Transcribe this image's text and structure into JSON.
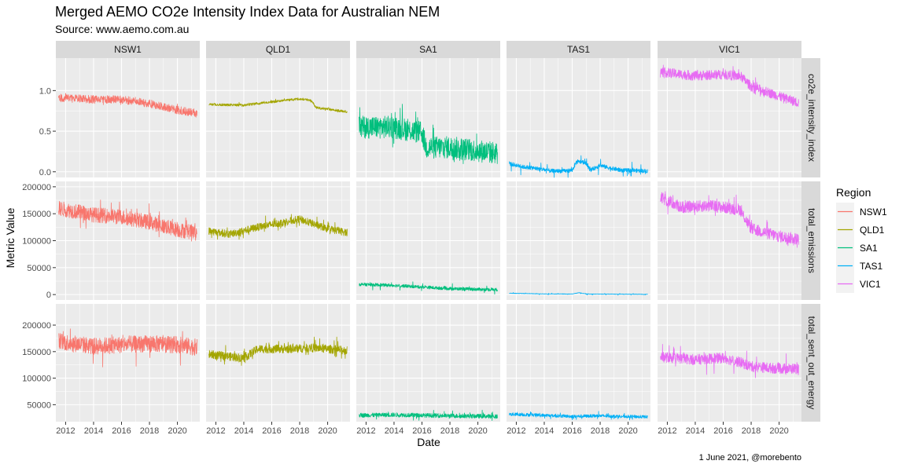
{
  "chart_data": {
    "type": "line",
    "title": "Merged AEMO CO2e Intensity Index Data for Australian NEM",
    "subtitle": "Source: www.aemo.com.au",
    "caption": "1 June 2021, @morebento",
    "xlabel": "Date",
    "ylabel": "Metric Value",
    "x_ticks": [
      "2012",
      "2014",
      "2016",
      "2018",
      "2020"
    ],
    "xlim": [
      2011.3,
      2021.6
    ],
    "grid": true,
    "legend": {
      "title": "Region",
      "position": "right"
    },
    "regions": [
      "NSW1",
      "QLD1",
      "SA1",
      "TAS1",
      "VIC1"
    ],
    "colors": {
      "NSW1": "#F8766D",
      "QLD1": "#A3A500",
      "SA1": "#00BF7D",
      "TAS1": "#00B0F6",
      "VIC1": "#E76BF3"
    },
    "facet_rows": [
      {
        "metric": "co2e_intensity_index",
        "ylim": [
          -0.07,
          1.4
        ],
        "y_ticks": [
          0.0,
          0.5,
          1.0
        ],
        "y_tick_labels": [
          "0.0",
          "0.5",
          "1.0"
        ],
        "series": [
          {
            "region": "NSW1",
            "start": 2011.5,
            "end": 2021.4,
            "trend": [
              [
                2011.5,
                0.91
              ],
              [
                2014,
                0.89
              ],
              [
                2016,
                0.89
              ],
              [
                2018,
                0.84
              ],
              [
                2020,
                0.76
              ],
              [
                2021.4,
                0.72
              ]
            ],
            "noise": 0.05,
            "spike": 0.06
          },
          {
            "region": "QLD1",
            "start": 2011.5,
            "end": 2021.4,
            "trend": [
              [
                2011.5,
                0.83
              ],
              [
                2014,
                0.82
              ],
              [
                2016,
                0.86
              ],
              [
                2018,
                0.9
              ],
              [
                2018.8,
                0.88
              ],
              [
                2019.2,
                0.79
              ],
              [
                2021.4,
                0.74
              ]
            ],
            "noise": 0.015,
            "spike": 0.02
          },
          {
            "region": "SA1",
            "start": 2011.5,
            "end": 2021.4,
            "trend": [
              [
                2011.5,
                0.55
              ],
              [
                2014,
                0.55
              ],
              [
                2016,
                0.48
              ],
              [
                2016.3,
                0.3
              ],
              [
                2018,
                0.3
              ],
              [
                2021.4,
                0.23
              ]
            ],
            "noise": 0.14,
            "spike": 0.2
          },
          {
            "region": "TAS1",
            "start": 2011.5,
            "end": 2021.4,
            "trend": [
              [
                2011.5,
                0.1
              ],
              [
                2012.5,
                0.06
              ],
              [
                2013.5,
                0.04
              ],
              [
                2014.5,
                0.01
              ],
              [
                2015.5,
                0.01
              ],
              [
                2016.0,
                0.02
              ],
              [
                2016.3,
                0.12
              ],
              [
                2016.9,
                0.12
              ],
              [
                2017.3,
                0.02
              ],
              [
                2018,
                0.08
              ],
              [
                2018.6,
                0.05
              ],
              [
                2019.5,
                0.02
              ],
              [
                2021.4,
                0.01
              ]
            ],
            "noise": 0.025,
            "spike": 0.1
          },
          {
            "region": "VIC1",
            "start": 2011.5,
            "end": 2021.4,
            "trend": [
              [
                2011.5,
                1.23
              ],
              [
                2014,
                1.18
              ],
              [
                2016,
                1.2
              ],
              [
                2017.3,
                1.17
              ],
              [
                2018,
                1.05
              ],
              [
                2020,
                0.93
              ],
              [
                2021.4,
                0.85
              ]
            ],
            "noise": 0.06,
            "spike": 0.08
          }
        ]
      },
      {
        "metric": "total_emissions",
        "ylim": [
          -10000,
          210000
        ],
        "y_ticks": [
          0,
          50000,
          100000,
          150000,
          200000
        ],
        "y_tick_labels": [
          "0",
          "50000",
          "100000",
          "150000",
          "200000"
        ],
        "series": [
          {
            "region": "NSW1",
            "start": 2011.5,
            "end": 2021.4,
            "trend": [
              [
                2011.5,
                160000
              ],
              [
                2014,
                148000
              ],
              [
                2016,
                144000
              ],
              [
                2018,
                134000
              ],
              [
                2020,
                120000
              ],
              [
                2021.4,
                115000
              ]
            ],
            "noise": 14000,
            "spike": 25000
          },
          {
            "region": "QLD1",
            "start": 2011.5,
            "end": 2021.4,
            "trend": [
              [
                2011.5,
                118000
              ],
              [
                2013,
                112000
              ],
              [
                2015,
                125000
              ],
              [
                2017,
                135000
              ],
              [
                2018,
                140000
              ],
              [
                2020,
                122000
              ],
              [
                2021.4,
                115000
              ]
            ],
            "noise": 7000,
            "spike": 12000
          },
          {
            "region": "SA1",
            "start": 2011.5,
            "end": 2021.4,
            "trend": [
              [
                2011.5,
                19000
              ],
              [
                2014,
                17000
              ],
              [
                2016,
                14000
              ],
              [
                2018,
                11000
              ],
              [
                2021.4,
                9000
              ]
            ],
            "noise": 3000,
            "spike": 7000
          },
          {
            "region": "TAS1",
            "start": 2011.5,
            "end": 2021.4,
            "trend": [
              [
                2011.5,
                2500
              ],
              [
                2014,
                1200
              ],
              [
                2016,
                1000
              ],
              [
                2016.5,
                3500
              ],
              [
                2017,
                1000
              ],
              [
                2021.4,
                500
              ]
            ],
            "noise": 400,
            "spike": 2000
          },
          {
            "region": "VIC1",
            "start": 2011.5,
            "end": 2021.4,
            "trend": [
              [
                2011.5,
                180000
              ],
              [
                2013,
                162000
              ],
              [
                2015,
                165000
              ],
              [
                2017.2,
                158000
              ],
              [
                2018,
                122000
              ],
              [
                2020,
                108000
              ],
              [
                2021.4,
                103000
              ]
            ],
            "noise": 11000,
            "spike": 18000
          }
        ]
      },
      {
        "metric": "total_sent_out_energy",
        "ylim": [
          18000,
          240000
        ],
        "y_ticks": [
          50000,
          100000,
          150000,
          200000
        ],
        "y_tick_labels": [
          "50000",
          "100000",
          "150000",
          "200000"
        ],
        "series": [
          {
            "region": "NSW1",
            "start": 2011.5,
            "end": 2021.4,
            "trend": [
              [
                2011.5,
                170000
              ],
              [
                2014,
                160000
              ],
              [
                2016,
                163000
              ],
              [
                2018,
                165000
              ],
              [
                2020,
                163000
              ],
              [
                2021.4,
                158000
              ]
            ],
            "noise": 16000,
            "spike": 30000
          },
          {
            "region": "QLD1",
            "start": 2011.5,
            "end": 2021.4,
            "trend": [
              [
                2011.5,
                145000
              ],
              [
                2014,
                138000
              ],
              [
                2015,
                155000
              ],
              [
                2017,
                155000
              ],
              [
                2019,
                157000
              ],
              [
                2021.4,
                152000
              ]
            ],
            "noise": 8000,
            "spike": 18000
          },
          {
            "region": "SA1",
            "start": 2011.5,
            "end": 2021.4,
            "trend": [
              [
                2011.5,
                30000
              ],
              [
                2014,
                31000
              ],
              [
                2016,
                30000
              ],
              [
                2018,
                29000
              ],
              [
                2021.4,
                28000
              ]
            ],
            "noise": 4000,
            "spike": 9000
          },
          {
            "region": "TAS1",
            "start": 2011.5,
            "end": 2021.4,
            "trend": [
              [
                2011.5,
                32000
              ],
              [
                2014,
                30000
              ],
              [
                2016,
                28000
              ],
              [
                2018,
                29000
              ],
              [
                2021.4,
                27000
              ]
            ],
            "noise": 3000,
            "spike": 6000
          },
          {
            "region": "VIC1",
            "start": 2011.5,
            "end": 2021.4,
            "trend": [
              [
                2011.5,
                140000
              ],
              [
                2014,
                135000
              ],
              [
                2016,
                138000
              ],
              [
                2017.2,
                130000
              ],
              [
                2018,
                122000
              ],
              [
                2020,
                118000
              ],
              [
                2021.4,
                118000
              ]
            ],
            "noise": 10000,
            "spike": 20000
          }
        ]
      }
    ]
  }
}
